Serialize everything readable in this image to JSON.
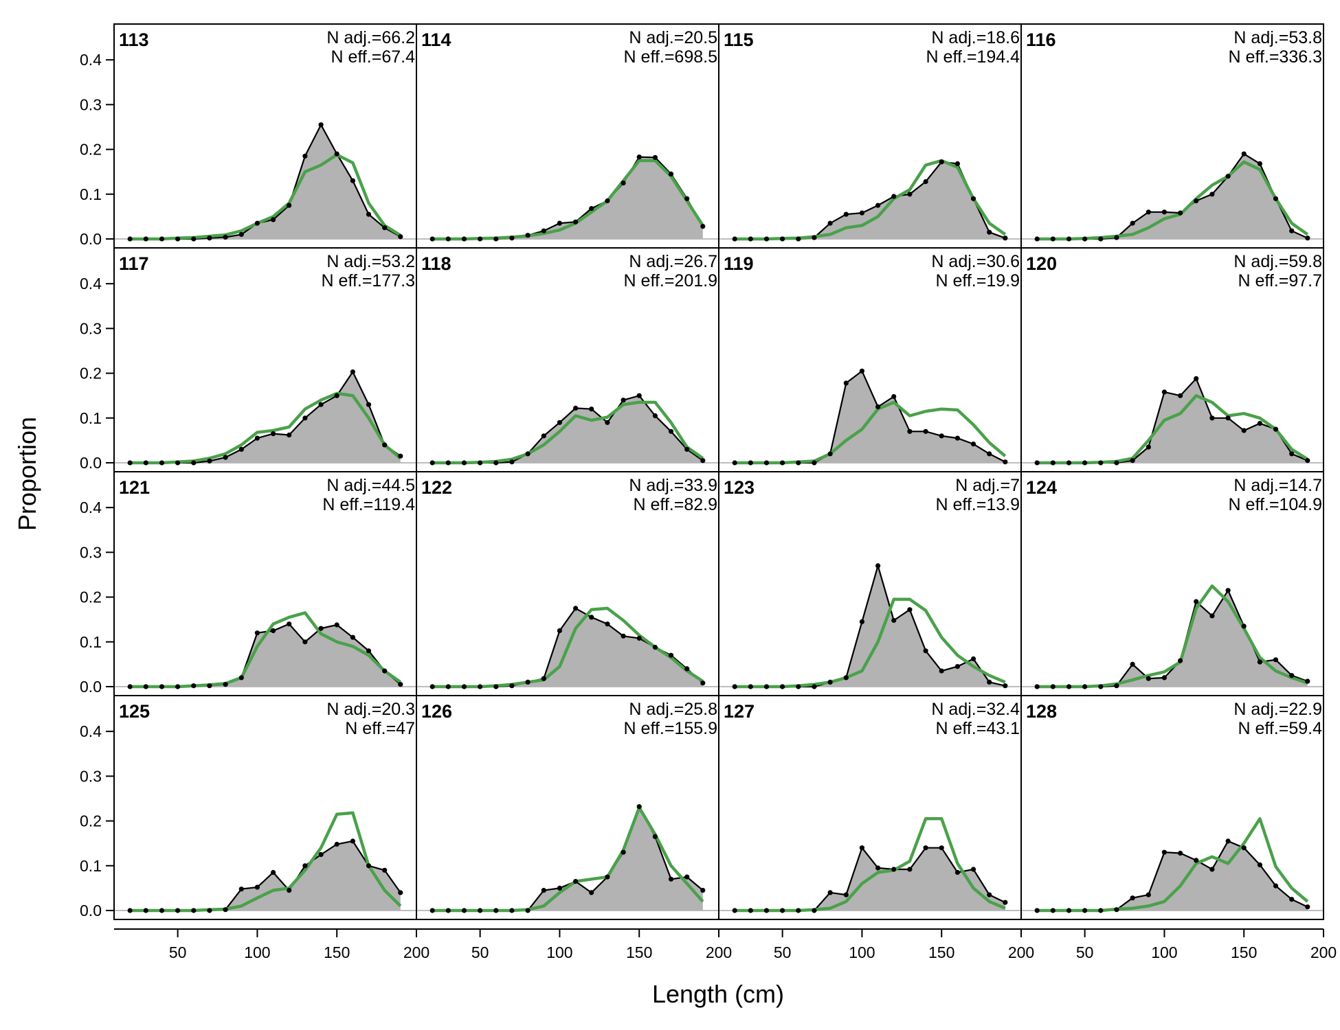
{
  "chart_data": {
    "type": "area",
    "xlabel": "Length (cm)",
    "ylabel": "Proportion",
    "xlim": [
      10,
      200
    ],
    "ylim": [
      -0.02,
      0.48
    ],
    "x_ticks": [
      50,
      100,
      150,
      200
    ],
    "y_ticks": [
      "0.0",
      "0.1",
      "0.2",
      "0.3",
      "0.4"
    ],
    "x": [
      20,
      30,
      40,
      50,
      60,
      70,
      80,
      90,
      100,
      110,
      120,
      130,
      140,
      150,
      160,
      170,
      180,
      190
    ],
    "colors": {
      "observed_fill": "#b3b3b3",
      "observed_line": "#000000",
      "expected_line": "#4aa14a",
      "zero_line": "#bdbdbd"
    },
    "panels": [
      {
        "id": "113",
        "n_adj": "N adj.=66.2",
        "n_eff": "N eff.=67.4",
        "obs": [
          0,
          0,
          0,
          0,
          0,
          0.002,
          0.004,
          0.01,
          0.035,
          0.043,
          0.075,
          0.185,
          0.255,
          0.19,
          0.13,
          0.055,
          0.025,
          0.005
        ],
        "exp": [
          0,
          0,
          0,
          0.002,
          0.003,
          0.006,
          0.009,
          0.018,
          0.035,
          0.05,
          0.08,
          0.15,
          0.165,
          0.188,
          0.17,
          0.08,
          0.03,
          0.008
        ]
      },
      {
        "id": "117",
        "n_adj": "N adj.=53.2",
        "n_eff": "N eff.=177.3",
        "obs": [
          0,
          0,
          0,
          0,
          0,
          0.004,
          0.012,
          0.03,
          0.055,
          0.065,
          0.062,
          0.1,
          0.13,
          0.15,
          0.203,
          0.13,
          0.04,
          0.015
        ],
        "exp": [
          0,
          0,
          0,
          0.002,
          0.004,
          0.01,
          0.02,
          0.04,
          0.068,
          0.072,
          0.08,
          0.12,
          0.14,
          0.155,
          0.15,
          0.1,
          0.04,
          0.01
        ]
      },
      {
        "id": "121",
        "n_adj": "N adj.=44.5",
        "n_eff": "N eff.=119.4",
        "obs": [
          0,
          0,
          0,
          0,
          0.002,
          0.002,
          0.005,
          0.02,
          0.12,
          0.125,
          0.14,
          0.1,
          0.13,
          0.138,
          0.11,
          0.08,
          0.035,
          0.005
        ],
        "exp": [
          0,
          0,
          0,
          0,
          0.002,
          0.004,
          0.007,
          0.02,
          0.09,
          0.14,
          0.155,
          0.165,
          0.118,
          0.1,
          0.09,
          0.07,
          0.035,
          0.01
        ]
      },
      {
        "id": "125",
        "n_adj": "N adj.=20.3",
        "n_eff": "N eff.=47",
        "obs": [
          0,
          0,
          0,
          0,
          0,
          0,
          0.002,
          0.048,
          0.052,
          0.085,
          0.045,
          0.1,
          0.125,
          0.148,
          0.155,
          0.1,
          0.09,
          0.04
        ],
        "exp": [
          0,
          0,
          0,
          0,
          0,
          0.002,
          0.003,
          0.01,
          0.028,
          0.045,
          0.05,
          0.09,
          0.14,
          0.215,
          0.218,
          0.1,
          0.045,
          0.01
        ]
      },
      {
        "id": "114",
        "n_adj": "N adj.=20.5",
        "n_eff": "N eff.=698.5",
        "obs": [
          0,
          0,
          0,
          0,
          0,
          0.002,
          0.008,
          0.018,
          0.035,
          0.038,
          0.068,
          0.085,
          0.125,
          0.183,
          0.182,
          0.145,
          0.09,
          0.028
        ],
        "exp": [
          0,
          0,
          0,
          0.001,
          0.002,
          0.004,
          0.007,
          0.012,
          0.02,
          0.035,
          0.06,
          0.085,
          0.13,
          0.175,
          0.175,
          0.14,
          0.085,
          0.03
        ]
      },
      {
        "id": "118",
        "n_adj": "N adj.=26.7",
        "n_eff": "N eff.=201.9",
        "obs": [
          0,
          0,
          0,
          0,
          0,
          0.002,
          0.02,
          0.06,
          0.09,
          0.122,
          0.12,
          0.09,
          0.14,
          0.15,
          0.105,
          0.07,
          0.03,
          0.005
        ],
        "exp": [
          0,
          0,
          0,
          0.001,
          0.003,
          0.008,
          0.02,
          0.04,
          0.07,
          0.105,
          0.095,
          0.102,
          0.13,
          0.135,
          0.135,
          0.09,
          0.035,
          0.01
        ]
      },
      {
        "id": "122",
        "n_adj": "N adj.=33.9",
        "n_eff": "N eff.=82.9",
        "obs": [
          0,
          0,
          0,
          0,
          0,
          0.002,
          0.01,
          0.018,
          0.125,
          0.175,
          0.155,
          0.14,
          0.113,
          0.108,
          0.088,
          0.07,
          0.04,
          0.008
        ],
        "exp": [
          0,
          0,
          0,
          0,
          0.002,
          0.005,
          0.01,
          0.015,
          0.045,
          0.13,
          0.172,
          0.175,
          0.148,
          0.115,
          0.088,
          0.065,
          0.035,
          0.012
        ]
      },
      {
        "id": "126",
        "n_adj": "N adj.=25.8",
        "n_eff": "N eff.=155.9",
        "obs": [
          0,
          0,
          0,
          0,
          0,
          0,
          0,
          0.045,
          0.05,
          0.065,
          0.04,
          0.075,
          0.13,
          0.232,
          0.165,
          0.07,
          0.075,
          0.045
        ],
        "exp": [
          0,
          0,
          0,
          0,
          0,
          0,
          0.002,
          0.01,
          0.04,
          0.065,
          0.07,
          0.075,
          0.135,
          0.23,
          0.17,
          0.1,
          0.06,
          0.02
        ]
      },
      {
        "id": "115",
        "n_adj": "N adj.=18.6",
        "n_eff": "N eff.=194.4",
        "obs": [
          0,
          0,
          0,
          0,
          0,
          0.003,
          0.035,
          0.055,
          0.058,
          0.075,
          0.095,
          0.1,
          0.128,
          0.172,
          0.168,
          0.09,
          0.015,
          0.002
        ],
        "exp": [
          0,
          0,
          0,
          0.001,
          0.002,
          0.005,
          0.01,
          0.025,
          0.03,
          0.05,
          0.09,
          0.11,
          0.165,
          0.175,
          0.16,
          0.09,
          0.035,
          0.01
        ]
      },
      {
        "id": "119",
        "n_adj": "N adj.=30.6",
        "n_eff": "N eff.=19.9",
        "obs": [
          0,
          0,
          0,
          0,
          0,
          0,
          0.02,
          0.178,
          0.205,
          0.125,
          0.148,
          0.07,
          0.07,
          0.06,
          0.055,
          0.042,
          0.02,
          0.002
        ],
        "exp": [
          0,
          0,
          0,
          0,
          0.002,
          0.004,
          0.02,
          0.05,
          0.075,
          0.12,
          0.135,
          0.105,
          0.115,
          0.12,
          0.118,
          0.085,
          0.045,
          0.015
        ]
      },
      {
        "id": "123",
        "n_adj": "N adj.=7",
        "n_eff": "N eff.=13.9",
        "obs": [
          0,
          0,
          0,
          0,
          0,
          0,
          0.01,
          0.02,
          0.145,
          0.27,
          0.148,
          0.172,
          0.08,
          0.035,
          0.045,
          0.062,
          0.01,
          0.002
        ],
        "exp": [
          0,
          0,
          0,
          0,
          0.002,
          0.005,
          0.01,
          0.02,
          0.035,
          0.1,
          0.195,
          0.195,
          0.17,
          0.11,
          0.07,
          0.045,
          0.025,
          0.01
        ]
      },
      {
        "id": "127",
        "n_adj": "N adj.=32.4",
        "n_eff": "N eff.=43.1",
        "obs": [
          0,
          0,
          0,
          0,
          0,
          0,
          0.04,
          0.035,
          0.14,
          0.095,
          0.092,
          0.092,
          0.14,
          0.14,
          0.085,
          0.092,
          0.035,
          0.018
        ],
        "exp": [
          0,
          0,
          0,
          0,
          0,
          0.002,
          0.005,
          0.02,
          0.06,
          0.085,
          0.09,
          0.11,
          0.205,
          0.205,
          0.105,
          0.05,
          0.02,
          0.005
        ]
      },
      {
        "id": "116",
        "n_adj": "N adj.=53.8",
        "n_eff": "N eff.=336.3",
        "obs": [
          0,
          0,
          0,
          0,
          0,
          0.003,
          0.035,
          0.06,
          0.06,
          0.058,
          0.085,
          0.1,
          0.14,
          0.19,
          0.168,
          0.09,
          0.018,
          0.002
        ],
        "exp": [
          0,
          0,
          0,
          0.001,
          0.003,
          0.006,
          0.01,
          0.025,
          0.045,
          0.055,
          0.09,
          0.12,
          0.14,
          0.172,
          0.155,
          0.09,
          0.035,
          0.01
        ]
      },
      {
        "id": "120",
        "n_adj": "N adj.=59.8",
        "n_eff": "N eff.=97.7",
        "obs": [
          0,
          0,
          0,
          0,
          0,
          0,
          0.005,
          0.035,
          0.158,
          0.15,
          0.188,
          0.1,
          0.1,
          0.072,
          0.088,
          0.075,
          0.02,
          0.005
        ],
        "exp": [
          0,
          0,
          0,
          0,
          0.001,
          0.003,
          0.01,
          0.05,
          0.095,
          0.11,
          0.15,
          0.135,
          0.105,
          0.11,
          0.1,
          0.075,
          0.03,
          0.008
        ]
      },
      {
        "id": "124",
        "n_adj": "N adj.=14.7",
        "n_eff": "N eff.=104.9",
        "obs": [
          0,
          0,
          0,
          0,
          0,
          0.002,
          0.05,
          0.018,
          0.02,
          0.058,
          0.19,
          0.158,
          0.215,
          0.135,
          0.055,
          0.06,
          0.025,
          0.012
        ],
        "exp": [
          0,
          0,
          0,
          0,
          0.002,
          0.006,
          0.015,
          0.025,
          0.033,
          0.055,
          0.175,
          0.225,
          0.19,
          0.13,
          0.065,
          0.035,
          0.02,
          0.008
        ]
      },
      {
        "id": "128",
        "n_adj": "N adj.=22.9",
        "n_eff": "N eff.=59.4",
        "obs": [
          0,
          0,
          0,
          0,
          0,
          0.002,
          0.028,
          0.035,
          0.13,
          0.128,
          0.112,
          0.092,
          0.155,
          0.14,
          0.102,
          0.055,
          0.025,
          0.008
        ],
        "exp": [
          0,
          0,
          0,
          0,
          0,
          0.003,
          0.005,
          0.01,
          0.02,
          0.055,
          0.105,
          0.12,
          0.105,
          0.15,
          0.205,
          0.098,
          0.05,
          0.02
        ]
      }
    ]
  }
}
